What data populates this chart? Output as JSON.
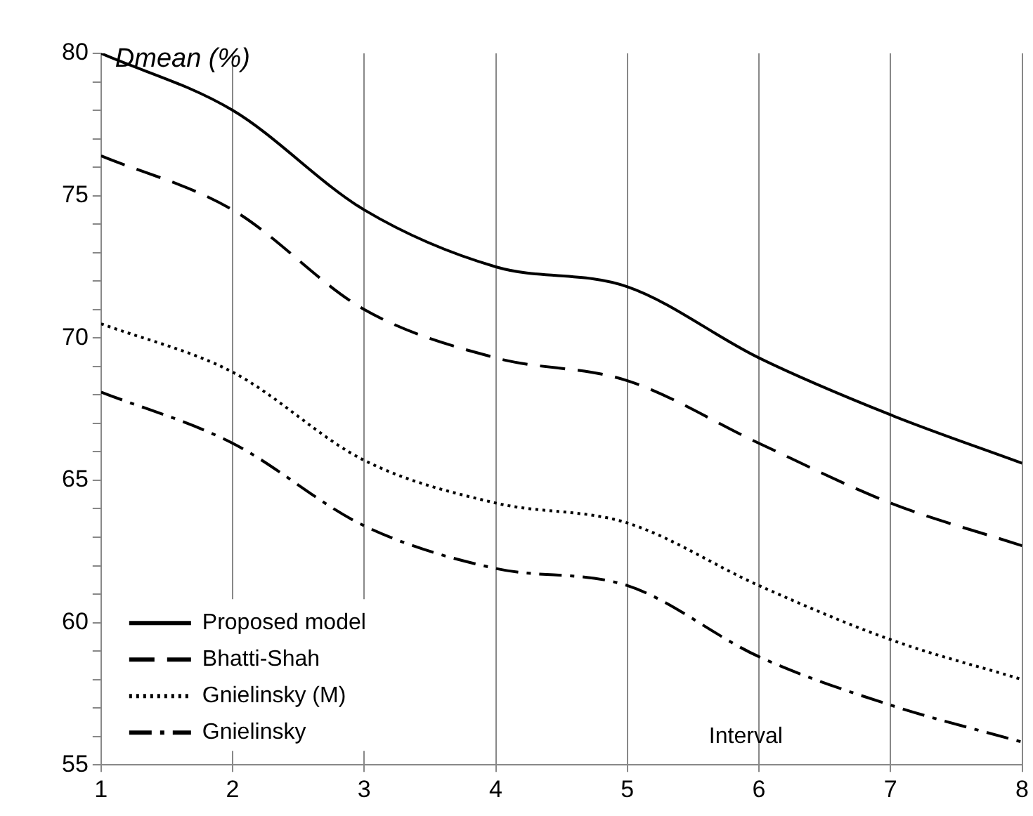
{
  "chart_data": {
    "type": "line",
    "ylabel": "Dmean (%)",
    "xlabel": "Interval",
    "x": [
      1,
      2,
      3,
      4,
      5,
      6,
      7,
      8
    ],
    "xlim": [
      1,
      8
    ],
    "xticks": [
      1,
      2,
      3,
      4,
      5,
      6,
      7,
      8
    ],
    "ylim": [
      55,
      80
    ],
    "yticks": [
      55,
      {
        "value": 56,
        "label": null
      },
      {
        "value": 57,
        "label": null
      },
      {
        "value": 58,
        "label": null
      },
      {
        "value": 59,
        "label": null
      },
      60,
      {
        "value": 61,
        "label": null
      },
      {
        "value": 62,
        "label": null
      },
      {
        "value": 63,
        "label": null
      },
      {
        "value": 64,
        "label": null
      },
      65,
      {
        "value": 66,
        "label": null
      },
      {
        "value": 67,
        "label": null
      },
      {
        "value": 68,
        "label": null
      },
      {
        "value": 69,
        "label": null
      },
      70,
      {
        "value": 71,
        "label": null
      },
      {
        "value": 72,
        "label": null
      },
      {
        "value": 73,
        "label": null
      },
      {
        "value": 74,
        "label": null
      },
      75,
      {
        "value": 76,
        "label": null
      },
      {
        "value": 77,
        "label": null
      },
      {
        "value": 78,
        "label": null
      },
      {
        "value": 79,
        "label": null
      },
      80
    ],
    "grid": "x",
    "legend": "bottom left",
    "marker": "none",
    "series": [
      {
        "name": "Proposed model",
        "color": "#000000",
        "line_style": "solid",
        "values": [
          80,
          78,
          74.5,
          72.5,
          71.8,
          69.3,
          67.3,
          65.6
        ]
      },
      {
        "name": "Bhatti-Shah",
        "color": "#000000",
        "line_style": "dashed",
        "values": [
          76.4,
          74.5,
          71,
          69.3,
          68.5,
          66.3,
          64.2,
          62.7
        ]
      },
      {
        "name": "Gnielinsky (M)",
        "color": "#000000",
        "line_style": "dotted",
        "values": [
          70.5,
          68.8,
          65.7,
          64.2,
          63.5,
          61.3,
          59.4,
          58
        ]
      },
      {
        "name": "Gnielinsky",
        "color": "#000000",
        "line_style": "dashdot",
        "values": [
          68.1,
          66.3,
          63.4,
          61.9,
          61.3,
          58.8,
          57.1,
          55.8
        ]
      }
    ]
  }
}
